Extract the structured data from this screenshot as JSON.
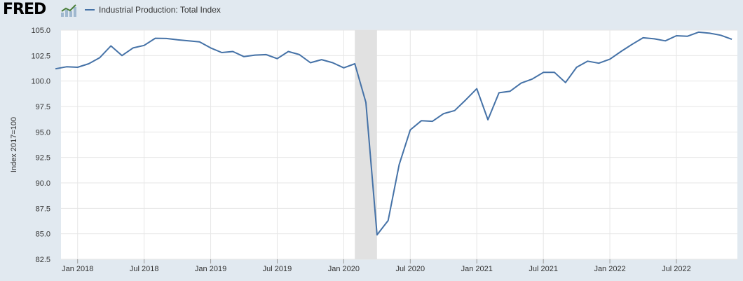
{
  "header": {
    "logo_text": "FRED",
    "logo_icon": "fred-graph-icon"
  },
  "colors": {
    "background": "#e1e9f0",
    "plot_background": "#ffffff",
    "series": "#4572a7",
    "recession": "#e1e1e1",
    "grid": "#e6e6e6"
  },
  "chart_data": {
    "type": "line",
    "title": "",
    "xlabel": "",
    "ylabel": "Index 2017=100",
    "ylim": [
      82.5,
      105.0
    ],
    "yticks": [
      "105.0",
      "102.5",
      "100.0",
      "97.5",
      "95.0",
      "92.5",
      "90.0",
      "87.5",
      "85.0",
      "82.5"
    ],
    "xticks": [
      "Jan 2018",
      "Jul 2018",
      "Jan 2019",
      "Jul 2019",
      "Jan 2020",
      "Jul 2020",
      "Jan 2021",
      "Jul 2021",
      "Jan 2022",
      "Jul 2022"
    ],
    "x_range": [
      "2017-11",
      "2022-12"
    ],
    "grid": true,
    "legend": "top-left",
    "recession_shading": {
      "start": "2020-02",
      "end": "2020-04"
    },
    "series": [
      {
        "name": "Industrial Production: Total Index",
        "x": [
          "2017-11",
          "2017-12",
          "2018-01",
          "2018-02",
          "2018-03",
          "2018-04",
          "2018-05",
          "2018-06",
          "2018-07",
          "2018-08",
          "2018-09",
          "2018-10",
          "2018-11",
          "2018-12",
          "2019-01",
          "2019-02",
          "2019-03",
          "2019-04",
          "2019-05",
          "2019-06",
          "2019-07",
          "2019-08",
          "2019-09",
          "2019-10",
          "2019-11",
          "2019-12",
          "2020-01",
          "2020-02",
          "2020-03",
          "2020-04",
          "2020-05",
          "2020-06",
          "2020-07",
          "2020-08",
          "2020-09",
          "2020-10",
          "2020-11",
          "2020-12",
          "2021-01",
          "2021-02",
          "2021-03",
          "2021-04",
          "2021-05",
          "2021-06",
          "2021-07",
          "2021-08",
          "2021-09",
          "2021-10",
          "2021-11",
          "2021-12",
          "2022-01",
          "2022-02",
          "2022-03",
          "2022-04",
          "2022-05",
          "2022-06",
          "2022-07",
          "2022-08",
          "2022-09",
          "2022-10",
          "2022-11",
          "2022-12"
        ],
        "values": [
          101.2,
          101.4,
          101.35,
          101.7,
          102.3,
          103.45,
          102.5,
          103.25,
          103.5,
          104.2,
          104.18,
          104.05,
          103.95,
          103.85,
          103.25,
          102.8,
          102.9,
          102.4,
          102.55,
          102.6,
          102.2,
          102.9,
          102.6,
          101.8,
          102.1,
          101.8,
          101.3,
          101.7,
          97.9,
          84.9,
          86.3,
          91.8,
          95.2,
          96.1,
          96.05,
          96.8,
          97.1,
          98.15,
          99.25,
          96.2,
          98.85,
          99.0,
          99.8,
          100.2,
          100.85,
          100.85,
          99.85,
          101.35,
          101.95,
          101.75,
          102.15,
          102.9,
          103.6,
          104.25,
          104.15,
          103.95,
          104.45,
          104.4,
          104.8,
          104.7,
          104.5,
          104.1
        ]
      }
    ]
  }
}
